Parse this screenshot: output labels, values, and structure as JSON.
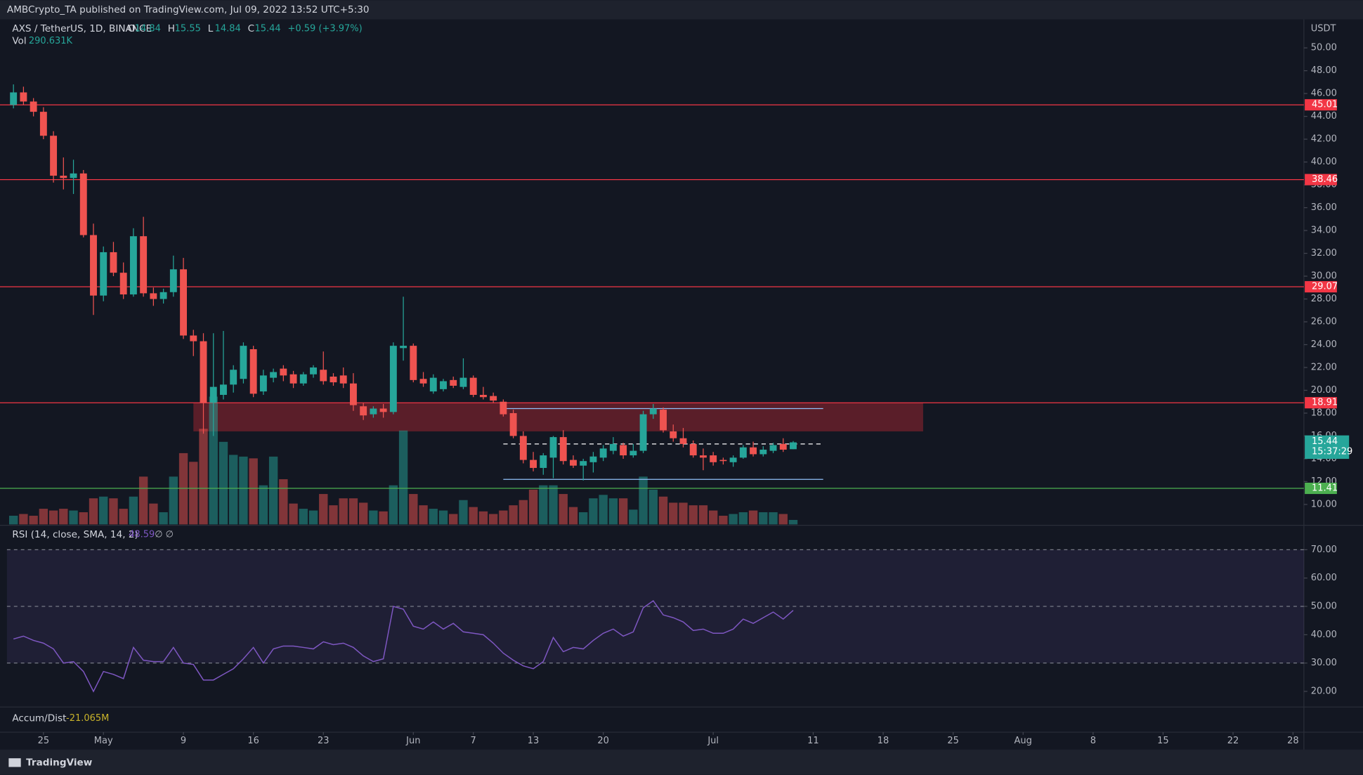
{
  "header": "AMBCrypto_TA published on TradingView.com, Jul 09, 2022 13:52 UTC+5:30",
  "logo": "TradingView",
  "chart_data": {
    "type": "candlestick",
    "symbol": "AXS / TetherUS, 1D, BINANCE",
    "ohlc_letters": [
      "O",
      "H",
      "L",
      "C"
    ],
    "change": "+0.59 (+3.97%)",
    "currency": "USDT",
    "up_color": "#26a69a",
    "down_color": "#ef5350",
    "x": [
      "2022-04-22",
      "2022-04-23",
      "2022-04-24",
      "2022-04-25",
      "2022-04-26",
      "2022-04-27",
      "2022-04-28",
      "2022-04-29",
      "2022-04-30",
      "2022-05-01",
      "2022-05-02",
      "2022-05-03",
      "2022-05-04",
      "2022-05-05",
      "2022-05-06",
      "2022-05-07",
      "2022-05-08",
      "2022-05-09",
      "2022-05-10",
      "2022-05-11",
      "2022-05-12",
      "2022-05-13",
      "2022-05-14",
      "2022-05-15",
      "2022-05-16",
      "2022-05-17",
      "2022-05-18",
      "2022-05-19",
      "2022-05-20",
      "2022-05-21",
      "2022-05-22",
      "2022-05-23",
      "2022-05-24",
      "2022-05-25",
      "2022-05-26",
      "2022-05-27",
      "2022-05-28",
      "2022-05-29",
      "2022-05-30",
      "2022-05-31",
      "2022-06-01",
      "2022-06-02",
      "2022-06-03",
      "2022-06-04",
      "2022-06-05",
      "2022-06-06",
      "2022-06-07",
      "2022-06-08",
      "2022-06-09",
      "2022-06-10",
      "2022-06-11",
      "2022-06-12",
      "2022-06-13",
      "2022-06-14",
      "2022-06-15",
      "2022-06-16",
      "2022-06-17",
      "2022-06-18",
      "2022-06-19",
      "2022-06-20",
      "2022-06-21",
      "2022-06-22",
      "2022-06-23",
      "2022-06-24",
      "2022-06-25",
      "2022-06-26",
      "2022-06-27",
      "2022-06-28",
      "2022-06-29",
      "2022-06-30",
      "2022-07-01",
      "2022-07-02",
      "2022-07-03",
      "2022-07-04",
      "2022-07-05",
      "2022-07-06",
      "2022-07-07",
      "2022-07-08",
      "2022-07-09"
    ],
    "open": [
      45.0,
      46.1,
      45.3,
      44.4,
      42.3,
      38.8,
      38.6,
      39.0,
      33.6,
      28.3,
      32.1,
      30.3,
      28.4,
      33.5,
      28.5,
      28.0,
      28.6,
      30.6,
      24.8,
      24.3,
      18.9,
      19.6,
      20.5,
      21.0,
      23.6,
      19.9,
      21.1,
      21.9,
      21.4,
      20.6,
      21.4,
      21.8,
      21.2,
      21.3,
      20.6,
      18.6,
      17.9,
      18.4,
      18.1,
      23.7,
      23.9,
      21.0,
      19.9,
      20.1,
      20.9,
      20.3,
      21.1,
      19.6,
      19.5,
      19.0,
      18.0,
      16.0,
      13.9,
      13.2,
      14.1,
      15.9,
      13.9,
      13.4,
      13.7,
      14.1,
      14.7,
      15.2,
      14.3,
      14.7,
      17.9,
      18.3,
      16.4,
      15.8,
      15.3,
      14.3,
      14.3,
      13.9,
      13.7,
      14.1,
      15.0,
      14.4,
      14.7,
      15.3,
      14.84
    ],
    "high": [
      46.8,
      46.6,
      45.6,
      44.8,
      42.7,
      40.4,
      40.2,
      39.3,
      34.6,
      32.6,
      33.0,
      31.2,
      34.2,
      35.2,
      29.0,
      28.9,
      31.8,
      31.6,
      25.3,
      25.0,
      25.0,
      25.2,
      22.2,
      24.2,
      23.9,
      21.8,
      21.9,
      22.2,
      21.7,
      21.6,
      22.2,
      23.4,
      21.5,
      22.0,
      21.5,
      18.9,
      18.6,
      18.8,
      24.2,
      28.2,
      24.1,
      21.6,
      21.4,
      21.0,
      21.2,
      22.8,
      21.3,
      20.3,
      19.8,
      19.2,
      18.3,
      16.4,
      14.6,
      14.5,
      16.0,
      16.5,
      14.3,
      14.0,
      14.6,
      15.2,
      15.9,
      15.4,
      15.3,
      18.2,
      18.8,
      18.5,
      17.0,
      16.7,
      15.6,
      14.9,
      14.6,
      14.1,
      14.3,
      15.2,
      15.5,
      15.1,
      15.4,
      15.8,
      15.55
    ],
    "low": [
      44.7,
      45.0,
      44.0,
      42.0,
      38.2,
      37.6,
      37.2,
      33.4,
      26.6,
      27.8,
      30.0,
      28.0,
      28.2,
      28.2,
      27.4,
      27.6,
      28.2,
      24.5,
      23.0,
      16.2,
      16.0,
      19.2,
      19.8,
      20.6,
      19.4,
      19.6,
      20.7,
      20.8,
      20.2,
      20.4,
      21.1,
      20.5,
      20.4,
      20.2,
      18.2,
      17.4,
      17.6,
      17.6,
      17.9,
      22.6,
      20.7,
      20.3,
      19.7,
      19.9,
      20.2,
      20.1,
      19.4,
      19.2,
      18.9,
      17.7,
      15.8,
      13.6,
      12.9,
      12.6,
      12.3,
      13.5,
      13.2,
      12.1,
      12.8,
      13.8,
      14.4,
      14.0,
      14.1,
      14.5,
      17.5,
      16.3,
      15.5,
      15.0,
      14.1,
      13.0,
      13.4,
      13.5,
      13.3,
      14.0,
      14.2,
      14.2,
      14.5,
      14.6,
      14.84
    ],
    "close": [
      46.1,
      45.3,
      44.4,
      42.3,
      38.8,
      38.6,
      39.0,
      33.6,
      28.3,
      32.1,
      30.3,
      28.4,
      33.5,
      28.5,
      28.0,
      28.6,
      30.6,
      24.8,
      24.3,
      18.9,
      20.3,
      20.5,
      21.8,
      23.9,
      19.7,
      21.3,
      21.6,
      21.3,
      20.6,
      21.4,
      22.0,
      20.8,
      20.7,
      20.6,
      18.7,
      17.8,
      18.4,
      18.1,
      23.9,
      23.9,
      20.9,
      20.6,
      21.1,
      20.8,
      20.4,
      21.1,
      19.6,
      19.4,
      19.1,
      17.9,
      16.0,
      13.9,
      13.2,
      14.3,
      15.9,
      13.8,
      13.4,
      13.8,
      14.2,
      14.9,
      15.3,
      14.3,
      14.7,
      17.9,
      18.4,
      16.5,
      15.8,
      15.3,
      14.3,
      14.1,
      13.7,
      13.8,
      14.1,
      15.0,
      14.4,
      14.8,
      15.2,
      14.8,
      15.44
    ],
    "countdown": "15:37:29",
    "xlim": [
      "2022-04-21",
      "2022-08-29"
    ],
    "ylim": [
      8.25,
      52.5
    ],
    "yticks": [
      {
        "value": 50,
        "label": "50.00"
      },
      {
        "value": 48,
        "label": "48.00"
      },
      {
        "value": 46,
        "label": "46.00"
      },
      {
        "value": 44,
        "label": "44.00"
      },
      {
        "value": 42,
        "label": "42.00"
      },
      {
        "value": 40,
        "label": "40.00"
      },
      {
        "value": 38,
        "label": "38.00"
      },
      {
        "value": 36,
        "label": "36.00"
      },
      {
        "value": 34,
        "label": "34.00"
      },
      {
        "value": 32,
        "label": "32.00"
      },
      {
        "value": 30,
        "label": "30.00"
      },
      {
        "value": 28,
        "label": "28.00"
      },
      {
        "value": 26,
        "label": "26.00"
      },
      {
        "value": 24,
        "label": "24.00"
      },
      {
        "value": 22,
        "label": "22.00"
      },
      {
        "value": 20,
        "label": "20.00"
      },
      {
        "value": 18,
        "label": "18.00"
      },
      {
        "value": 16,
        "label": "16.00"
      },
      {
        "value": 14,
        "label": "14.00"
      },
      {
        "value": 12,
        "label": "12.00"
      },
      {
        "value": 10,
        "label": "10.00"
      }
    ],
    "xticks": [
      {
        "value": "2022-04-25",
        "label": "25"
      },
      {
        "value": "2022-05-01",
        "label": "May"
      },
      {
        "value": "2022-05-09",
        "label": "9"
      },
      {
        "value": "2022-05-16",
        "label": "16"
      },
      {
        "value": "2022-05-23",
        "label": "23"
      },
      {
        "value": "2022-06-01",
        "label": "Jun"
      },
      {
        "value": "2022-06-07",
        "label": "7"
      },
      {
        "value": "2022-06-13",
        "label": "13"
      },
      {
        "value": "2022-06-20",
        "label": "20"
      },
      {
        "value": "2022-07-01",
        "label": "Jul"
      },
      {
        "value": "2022-07-11",
        "label": "11"
      },
      {
        "value": "2022-07-18",
        "label": "18"
      },
      {
        "value": "2022-07-25",
        "label": "25"
      },
      {
        "value": "2022-08-01",
        "label": "Aug"
      },
      {
        "value": "2022-08-08",
        "label": "8"
      },
      {
        "value": "2022-08-15",
        "label": "15"
      },
      {
        "value": "2022-08-22",
        "label": "22"
      },
      {
        "value": "2022-08-28",
        "label": "28"
      }
    ],
    "levels": [
      {
        "value": 45.01,
        "color": "#f23645"
      },
      {
        "value": 38.46,
        "color": "#f23645"
      },
      {
        "value": 29.07,
        "color": "#f23645"
      },
      {
        "value": 18.91,
        "color": "#f23645"
      },
      {
        "value": 11.41,
        "color": "#4caf50"
      }
    ],
    "zone": {
      "from": "2022-05-10",
      "to": "2022-07-22",
      "low": 16.4,
      "high": 18.9,
      "color": "rgba(178,40,51,0.45)"
    },
    "range_lines": [
      {
        "from": "2022-06-10",
        "to": "2022-07-12",
        "value": 18.4,
        "color": "#90bff9",
        "dashed": false
      },
      {
        "from": "2022-06-10",
        "to": "2022-07-12",
        "value": 15.3,
        "color": "#ffffff",
        "dashed": true
      },
      {
        "from": "2022-06-10",
        "to": "2022-07-12",
        "value": 12.2,
        "color": "#90bff9",
        "dashed": false
      }
    ],
    "volume": {
      "name": "Vol",
      "legend_value": "290.631K",
      "ylim": [
        0,
        9000
      ],
      "up_color": "rgba(38,166,154,0.5)",
      "down_color": "rgba(239,83,80,0.5)",
      "values": [
        562,
        675,
        562,
        1012,
        900,
        1012,
        900,
        788,
        1688,
        1800,
        1688,
        1012,
        1800,
        3094,
        1350,
        788,
        3094,
        4612,
        4050,
        6188,
        8269,
        5344,
        4500,
        4388,
        4275,
        2531,
        4388,
        2925,
        1350,
        1012,
        900,
        1969,
        1238,
        1688,
        1688,
        1406,
        900,
        844,
        2531,
        6075,
        1969,
        1238,
        1012,
        900,
        675,
        1575,
        1125,
        844,
        675,
        900,
        1238,
        1575,
        2250,
        2531,
        2531,
        1969,
        1125,
        788,
        1688,
        1912,
        1688,
        1688,
        956,
        3094,
        2250,
        1800,
        1406,
        1406,
        1238,
        1238,
        900,
        562,
        675,
        788,
        900,
        788,
        788,
        675,
        290.631
      ]
    },
    "rsi": {
      "name": "RSI (14, close, SMA, 14, 2)",
      "extra": "∅ ∅",
      "color": "#7e57c2",
      "ylim": [
        14.8,
        77.7
      ],
      "bands": [
        30,
        50,
        70
      ],
      "band_color": "rgba(126,87,194,0.12)",
      "yticks": [
        {
          "value": 70,
          "label": "70.00"
        },
        {
          "value": 60,
          "label": "60.00"
        },
        {
          "value": 50,
          "label": "50.00"
        },
        {
          "value": 40,
          "label": "40.00"
        },
        {
          "value": 30,
          "label": "30.00"
        },
        {
          "value": 20,
          "label": "20.00"
        }
      ],
      "values": [
        38.5,
        39.5,
        38,
        37,
        35,
        30,
        30.5,
        27,
        20,
        27,
        26,
        24.5,
        35.5,
        31,
        30.5,
        30.5,
        35.5,
        30,
        29.5,
        24,
        24,
        26,
        28,
        31.5,
        35.5,
        30,
        35,
        36,
        36,
        35.5,
        35,
        37.5,
        36.5,
        37,
        35.5,
        32.5,
        30.5,
        31.5,
        50,
        49,
        43,
        42,
        44.5,
        42,
        44,
        41,
        40.5,
        40,
        37,
        33.5,
        31,
        29,
        28,
        30.5,
        39,
        34,
        35.5,
        35,
        38,
        40.5,
        42,
        39.5,
        41,
        49.5,
        52,
        47,
        46,
        44.5,
        41.5,
        42,
        40.5,
        40.5,
        42,
        45.5,
        44,
        46,
        48,
        45.5,
        48.59
      ]
    },
    "accum_dist": {
      "name": "Accum/Dist",
      "value_label": "-21.065M"
    }
  }
}
